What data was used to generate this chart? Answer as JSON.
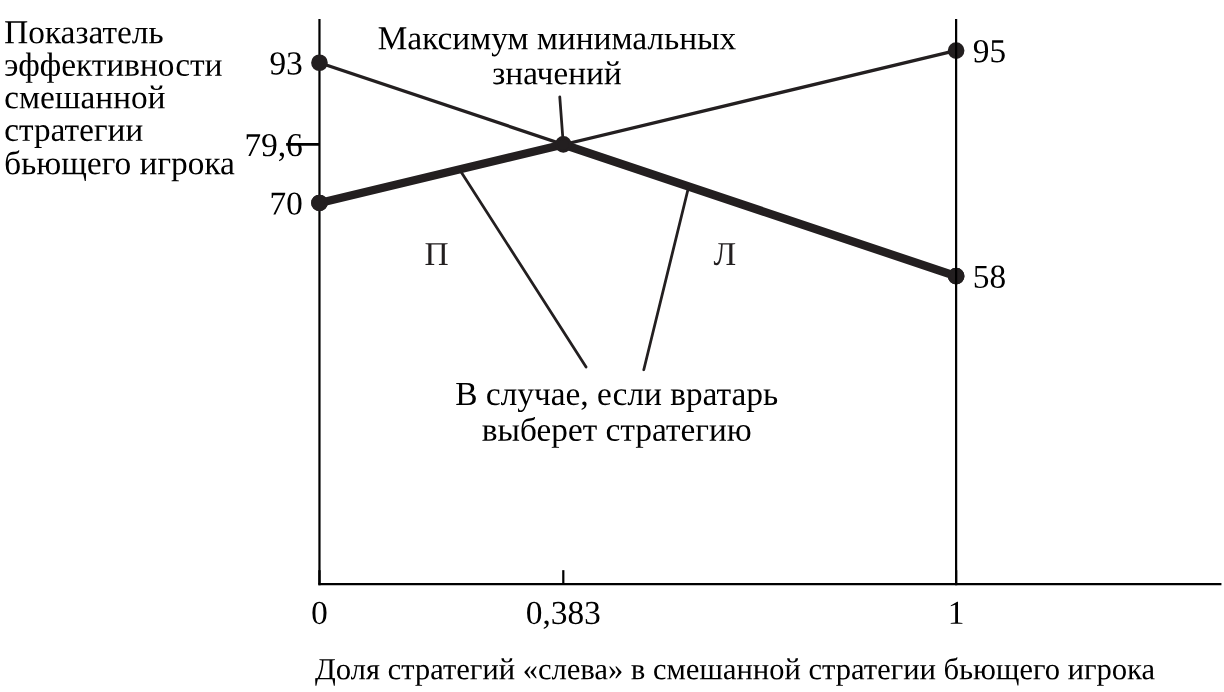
{
  "chart_data": {
    "type": "line",
    "xlabel": "Доля стратегий «слева» в смешанной стратегии бьющего игрока",
    "ylabel": "Показатель\nэффективности\nсмешанной\nстратегии\nбьющего игрока",
    "x": [
      0,
      1
    ],
    "series": [
      {
        "name": "П",
        "color": "#231f20",
        "values": [
          70,
          95
        ]
      },
      {
        "name": "Л",
        "color": "#231f20",
        "values": [
          93,
          58
        ]
      },
      {
        "color": "#231f20",
        "x": [
          0,
          0.383,
          1
        ],
        "values": [
          70,
          79.6,
          58
        ]
      }
    ],
    "xlim": [
      0,
      1.415
    ],
    "xticks": [
      0,
      {
        "value": 0.383,
        "label": "0,383"
      },
      1
    ],
    "ylim": [
      7.5,
      100
    ],
    "yticks": [
      93,
      {
        "value": 79.6,
        "label": "79,6"
      },
      70
    ],
    "y2lim": [
      7.5,
      100
    ],
    "y2ticks": [
      95,
      58
    ],
    "marker": "circle",
    "grid": false,
    "legend": false,
    "annotations": [
      {
        "text": "Максимум минимальных\nзначений",
        "x": 0.383,
        "y": 79.6
      },
      {
        "text": "В случае, если вратарь\nвыберет стратегию",
        "x": 0.22,
        "y": 75.5
      }
    ]
  }
}
